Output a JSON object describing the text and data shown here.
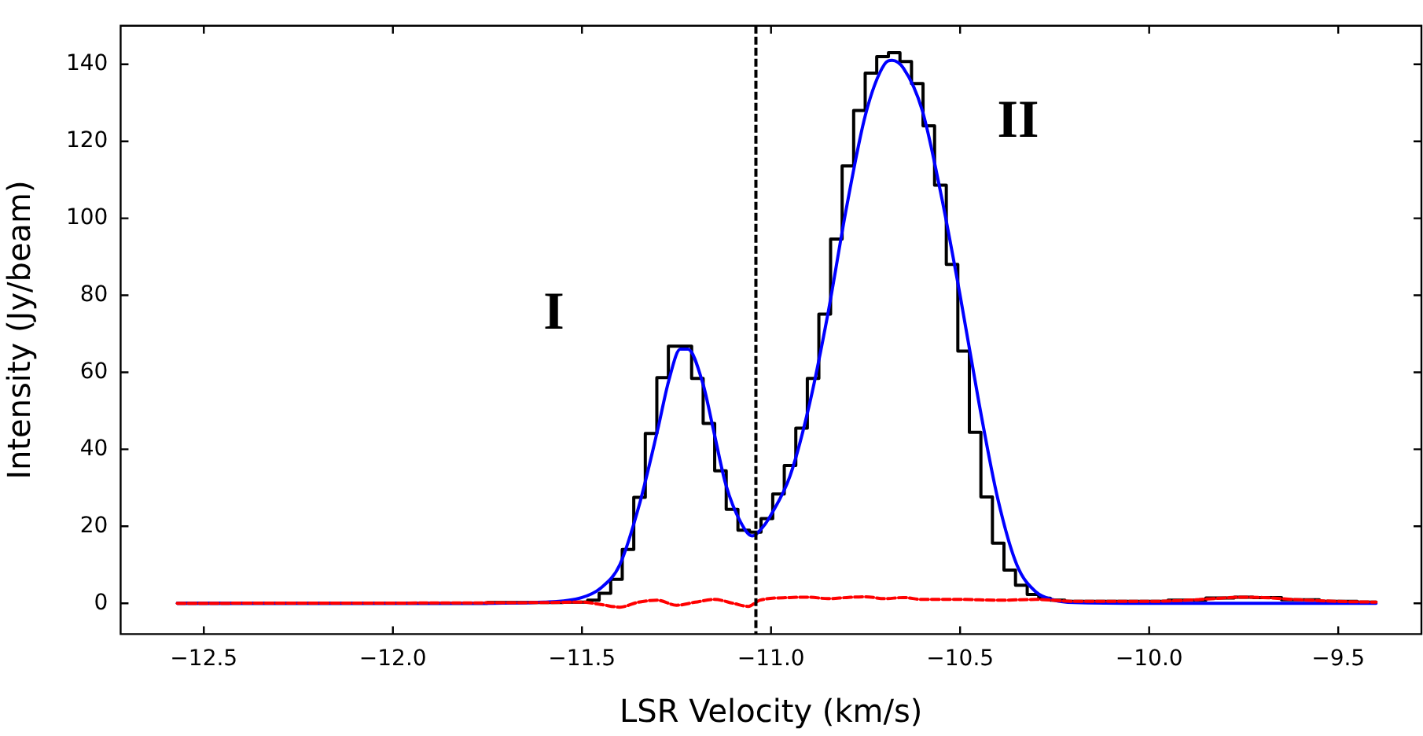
{
  "chart_data": {
    "type": "line",
    "xlabel": "LSR Velocity (km/s)",
    "ylabel": "Intensity (Jy/beam)",
    "xlim": [
      -12.72,
      -9.28
    ],
    "ylim": [
      -8,
      150
    ],
    "xticks": [
      {
        "value": -12.5,
        "label": "−12.5"
      },
      {
        "value": -12.0,
        "label": "−12.0"
      },
      {
        "value": -11.5,
        "label": "−11.5"
      },
      {
        "value": -11.0,
        "label": "−11.0"
      },
      {
        "value": -10.5,
        "label": "−10.5"
      },
      {
        "value": -10.0,
        "label": "−10.0"
      },
      {
        "value": -9.5,
        "label": "−9.5"
      }
    ],
    "yticks": [
      0,
      20,
      40,
      60,
      80,
      100,
      120,
      140
    ],
    "grid": false,
    "legend": false,
    "marker": "none",
    "series": [
      {
        "type": "step",
        "color": "#000000",
        "line_style": "solid",
        "x": [
          -12.57,
          -11.9,
          -11.6,
          -11.5,
          -11.47,
          -11.439,
          -11.409,
          -11.378,
          -11.348,
          -11.317,
          -11.287,
          -11.256,
          -11.225,
          -11.195,
          -11.164,
          -11.134,
          -11.103,
          -11.072,
          -11.042,
          -11.011,
          -10.98,
          -10.95,
          -10.919,
          -10.889,
          -10.858,
          -10.827,
          -10.797,
          -10.766,
          -10.736,
          -10.705,
          -10.674,
          -10.644,
          -10.613,
          -10.583,
          -10.552,
          -10.521,
          -10.491,
          -10.46,
          -10.43,
          -10.399,
          -10.369,
          -10.338,
          -10.307,
          -10.277,
          -10.246,
          -10.2,
          -10.0,
          -9.9,
          -9.8,
          -9.75,
          -9.7,
          -9.6,
          -9.5,
          -9.4
        ],
        "values": [
          0,
          0,
          0.2,
          0.3,
          0.8,
          2.6,
          6.2,
          14,
          27.5,
          44.1,
          58.6,
          66.8,
          66.8,
          58.4,
          46.7,
          34.4,
          24.4,
          19,
          18.5,
          22,
          28.4,
          35.8,
          45.5,
          58.4,
          75.1,
          94.6,
          113.6,
          128,
          137.7,
          142,
          143,
          140.7,
          135,
          124,
          108.6,
          88,
          65.5,
          44.4,
          27.6,
          15.6,
          8.6,
          4.7,
          2.3,
          1.3,
          0.8,
          0.5,
          0.5,
          0.8,
          1.4,
          1.6,
          1.5,
          0.9,
          0.5,
          0.3
        ]
      },
      {
        "type": "line",
        "color": "#0000ff",
        "line_style": "solid",
        "x": [
          -12.57,
          -11.8,
          -11.6,
          -11.5,
          -11.45,
          -11.4,
          -11.35,
          -11.3,
          -11.27,
          -11.24,
          -11.22,
          -11.18,
          -11.15,
          -11.12,
          -11.08,
          -11.05,
          -11.02,
          -11.0,
          -10.95,
          -10.9,
          -10.85,
          -10.8,
          -10.75,
          -10.7,
          -10.68,
          -10.65,
          -10.6,
          -10.55,
          -10.5,
          -10.45,
          -10.4,
          -10.35,
          -10.3,
          -10.25,
          -10.2,
          -10.0,
          -9.4
        ],
        "values": [
          0,
          0,
          0.3,
          1.5,
          4,
          10,
          25,
          45,
          58,
          66,
          66,
          57,
          44,
          31,
          21,
          17.5,
          20,
          23,
          33,
          51,
          75,
          103,
          127,
          140,
          141,
          139,
          128,
          106,
          80,
          52,
          27,
          10,
          3,
          0.8,
          0.2,
          0,
          0
        ]
      },
      {
        "type": "line",
        "color": "#ff0000",
        "line_style": "dashed",
        "x": [
          -12.57,
          -11.6,
          -11.5,
          -11.45,
          -11.4,
          -11.35,
          -11.3,
          -11.25,
          -11.2,
          -11.15,
          -11.1,
          -11.06,
          -11.03,
          -10.95,
          -10.9,
          -10.85,
          -10.8,
          -10.75,
          -10.7,
          -10.65,
          -10.6,
          -10.5,
          -10.4,
          -10.3,
          -10.2,
          -10.0,
          -9.9,
          -9.8,
          -9.75,
          -9.7,
          -9.6,
          -9.5,
          -9.4
        ],
        "values": [
          0,
          0.2,
          0.3,
          -0.3,
          -1,
          0.3,
          0.8,
          -0.5,
          0.3,
          1,
          0,
          -0.8,
          0.8,
          1.5,
          1.6,
          1.2,
          1.5,
          1.7,
          1.2,
          1.5,
          1,
          1,
          0.8,
          1,
          0.5,
          0.5,
          0.8,
          1.4,
          1.6,
          1.5,
          0.9,
          0.5,
          0.3
        ]
      }
    ],
    "ref_lines": [
      {
        "axis": "x",
        "value": -11.04,
        "color": "#000000",
        "line_style": "dashed"
      }
    ],
    "annotations": [
      "I",
      "II"
    ]
  }
}
